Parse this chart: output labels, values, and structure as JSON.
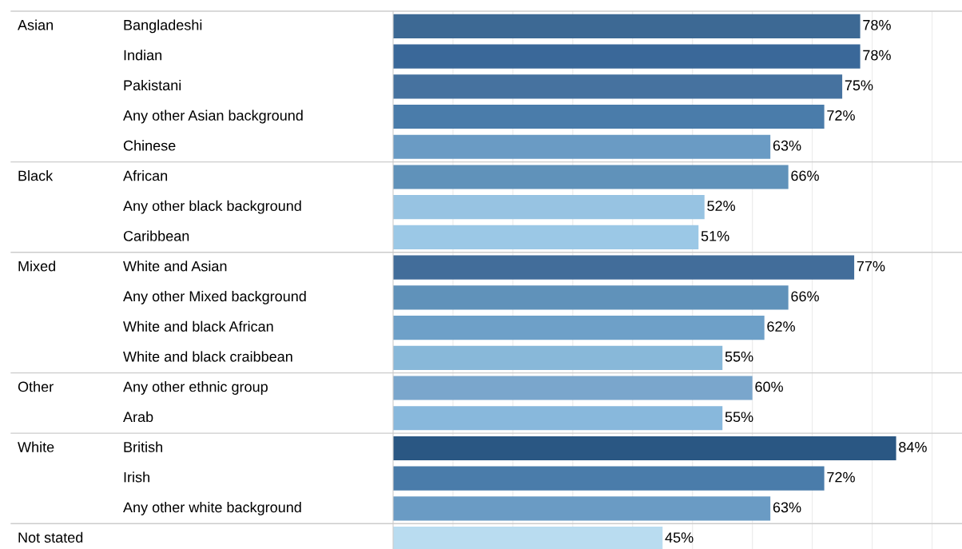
{
  "chart_data": {
    "type": "bar",
    "orientation": "horizontal",
    "categories": [
      "Bangladeshi",
      "Indian",
      "Pakistani",
      "Any other Asian background",
      "Chinese",
      "African",
      "Any other black background",
      "Caribbean",
      "White and Asian",
      "Any other Mixed background",
      "White and black African",
      "White and black craibbean",
      "Any other ethnic group",
      "Arab",
      "British",
      "Irish",
      "Any other white background",
      null
    ],
    "values": [
      78,
      78,
      75,
      72,
      63,
      66,
      52,
      51,
      77,
      66,
      62,
      55,
      60,
      55,
      84,
      72,
      63,
      45
    ],
    "colors": [
      "#3d6994",
      "#3a6899",
      "#46729f",
      "#4a7caa",
      "#6a9bc4",
      "#6092ba",
      "#97c3e2",
      "#9bc8e6",
      "#426d9a",
      "#6092ba",
      "#6ea0c8",
      "#88b8d9",
      "#7aa6cc",
      "#88b8dc",
      "#2a5783",
      "#4a7caa",
      "#6a9bc4",
      "#b9dcf0"
    ],
    "data_labels": true,
    "value_labels": [
      "78%",
      "78%",
      "75%",
      "72%",
      "63%",
      "66%",
      "52%",
      "51%",
      "77%",
      "66%",
      "62%",
      "55%",
      "60%",
      "55%",
      "84%",
      "72%",
      "63%",
      "45%"
    ],
    "xlim": [
      0,
      95
    ],
    "xticks": [
      {
        "value": 10,
        "label": null
      },
      {
        "value": 20,
        "label": null
      },
      {
        "value": 30,
        "label": null
      },
      {
        "value": 40,
        "label": null
      },
      {
        "value": 50,
        "label": null
      },
      {
        "value": 60,
        "label": null
      },
      {
        "value": 70,
        "label": null
      },
      {
        "value": 80,
        "label": null
      },
      {
        "value": 90,
        "label": null
      }
    ],
    "grid": "x",
    "tick_labels": "y",
    "annotations": [
      "Asian",
      "Black",
      "Mixed",
      "Other",
      "White",
      "Not stated"
    ]
  }
}
